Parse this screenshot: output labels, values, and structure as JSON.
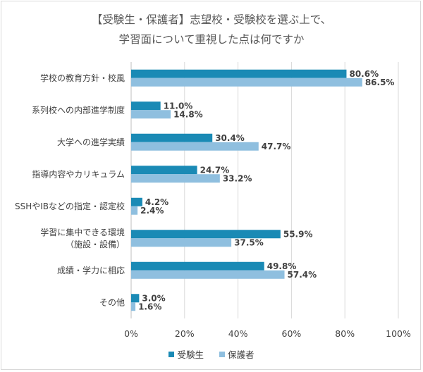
{
  "chart_data": {
    "type": "bar",
    "orientation": "horizontal",
    "title": "【受験生・保護者】志望校・受験校を選ぶ上で、",
    "subtitle": "学習面について重視した点は何ですか",
    "categories": [
      [
        "学校の教育方針・校風"
      ],
      [
        "系列校への内部進学制度"
      ],
      [
        "大学への進学実績"
      ],
      [
        "指導内容やカリキュラム"
      ],
      [
        "SSHやIBなどの指定・認定校"
      ],
      [
        "学習に集中できる環境",
        "（施設・設備）"
      ],
      [
        "成績・学力に相応"
      ],
      [
        "その他"
      ]
    ],
    "series": [
      {
        "name": "受験生",
        "color": "#1a8ab5",
        "values": [
          80.6,
          11.0,
          30.4,
          24.7,
          4.2,
          55.9,
          49.8,
          3.0
        ],
        "labels": [
          "80.6%",
          "11.0%",
          "30.4%",
          "24.7%",
          "4.2%",
          "55.9%",
          "49.8%",
          "3.0%"
        ]
      },
      {
        "name": "保護者",
        "color": "#8fbfdf",
        "values": [
          86.5,
          14.8,
          47.7,
          33.2,
          2.4,
          37.5,
          57.4,
          1.6
        ],
        "labels": [
          "86.5%",
          "14.8%",
          "47.7%",
          "33.2%",
          "2.4%",
          "37.5%",
          "57.4%",
          "1.6%"
        ]
      }
    ],
    "xlim": [
      0,
      100
    ],
    "xticks": [
      "0%",
      "20%",
      "40%",
      "60%",
      "80%",
      "100%"
    ],
    "grid": true,
    "legend_position": "bottom"
  }
}
